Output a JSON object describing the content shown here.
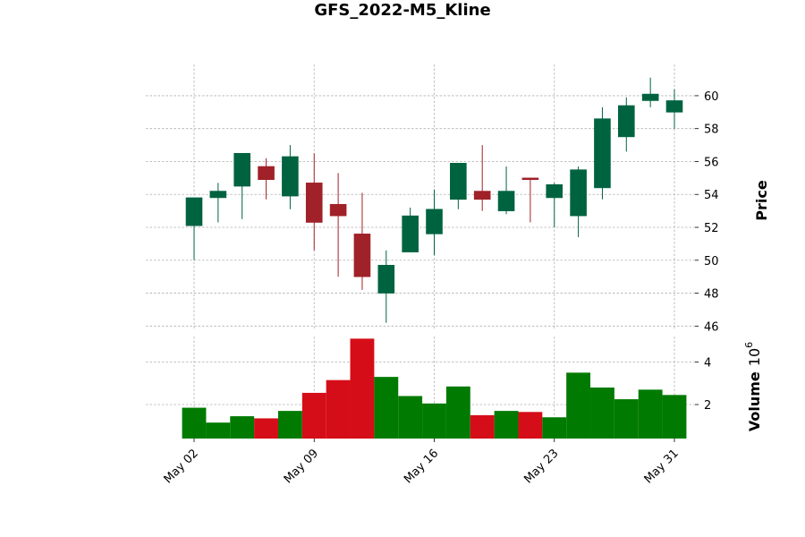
{
  "chart_data": {
    "type": "candlestick",
    "title": "GFS_2022-M5_Kline",
    "price_axis_label": "Price",
    "volume_axis_label": "Volume",
    "volume_multiplier_label": "10",
    "volume_multiplier_exp": "6",
    "colors": {
      "up_candle": "#006340",
      "down_candle": "#a02128",
      "up_volume": "#007a00",
      "down_volume": "#d50d18"
    },
    "price_ylim": [
      45.8,
      61.9
    ],
    "price_ticks": [
      46,
      48,
      50,
      52,
      54,
      56,
      58,
      60
    ],
    "volume_ylim": [
      0.4,
      5.2
    ],
    "volume_ticks": [
      2,
      4
    ],
    "x_tick_labels": [
      {
        "index": 0,
        "label": "May 02"
      },
      {
        "index": 5,
        "label": "May 09"
      },
      {
        "index": 10,
        "label": "May 16"
      },
      {
        "index": 15,
        "label": "May 23"
      },
      {
        "index": 20,
        "label": "May 31"
      }
    ],
    "candles": [
      {
        "date": "2022-05-02",
        "open": 52.1,
        "high": 53.8,
        "low": 50.0,
        "close": 53.8,
        "volume": 1.85
      },
      {
        "date": "2022-05-03",
        "open": 53.8,
        "high": 54.7,
        "low": 52.3,
        "close": 54.2,
        "volume": 1.15
      },
      {
        "date": "2022-05-04",
        "open": 54.5,
        "high": 56.5,
        "low": 52.5,
        "close": 56.5,
        "volume": 1.45
      },
      {
        "date": "2022-05-05",
        "open": 55.7,
        "high": 56.2,
        "low": 53.7,
        "close": 54.9,
        "volume": 1.35
      },
      {
        "date": "2022-05-06",
        "open": 53.9,
        "high": 57.0,
        "low": 53.1,
        "close": 56.3,
        "volume": 1.7
      },
      {
        "date": "2022-05-09",
        "open": 54.7,
        "high": 56.5,
        "low": 50.6,
        "close": 52.3,
        "volume": 2.55
      },
      {
        "date": "2022-05-10",
        "open": 53.4,
        "high": 55.3,
        "low": 49.0,
        "close": 52.7,
        "volume": 3.15
      },
      {
        "date": "2022-05-11",
        "open": 51.6,
        "high": 54.1,
        "low": 48.2,
        "close": 49.0,
        "volume": 5.1
      },
      {
        "date": "2022-05-12",
        "open": 48.0,
        "high": 50.6,
        "low": 46.2,
        "close": 49.7,
        "volume": 3.3
      },
      {
        "date": "2022-05-13",
        "open": 50.5,
        "high": 53.2,
        "low": 50.5,
        "close": 52.7,
        "volume": 2.4
      },
      {
        "date": "2022-05-16",
        "open": 51.6,
        "high": 54.3,
        "low": 50.3,
        "close": 53.1,
        "volume": 2.05
      },
      {
        "date": "2022-05-17",
        "open": 53.7,
        "high": 55.9,
        "low": 53.1,
        "close": 55.9,
        "volume": 2.85
      },
      {
        "date": "2022-05-18",
        "open": 54.2,
        "high": 57.0,
        "low": 53.0,
        "close": 53.7,
        "volume": 1.5
      },
      {
        "date": "2022-05-19",
        "open": 53.0,
        "high": 55.7,
        "low": 52.8,
        "close": 54.2,
        "volume": 1.7
      },
      {
        "date": "2022-05-20",
        "open": 55.0,
        "high": 55.0,
        "low": 52.3,
        "close": 54.9,
        "volume": 1.65
      },
      {
        "date": "2022-05-23",
        "open": 53.8,
        "high": 54.7,
        "low": 52.0,
        "close": 54.6,
        "volume": 1.4
      },
      {
        "date": "2022-05-24",
        "open": 52.7,
        "high": 55.7,
        "low": 51.4,
        "close": 55.5,
        "volume": 3.5
      },
      {
        "date": "2022-05-25",
        "open": 54.4,
        "high": 59.3,
        "low": 53.7,
        "close": 58.6,
        "volume": 2.8
      },
      {
        "date": "2022-05-26",
        "open": 57.5,
        "high": 59.9,
        "low": 56.6,
        "close": 59.4,
        "volume": 2.25
      },
      {
        "date": "2022-05-27",
        "open": 59.7,
        "high": 61.1,
        "low": 59.3,
        "close": 60.1,
        "volume": 2.7
      },
      {
        "date": "2022-05-31",
        "open": 59.0,
        "high": 60.4,
        "low": 58.0,
        "close": 59.7,
        "volume": 2.45
      }
    ]
  }
}
